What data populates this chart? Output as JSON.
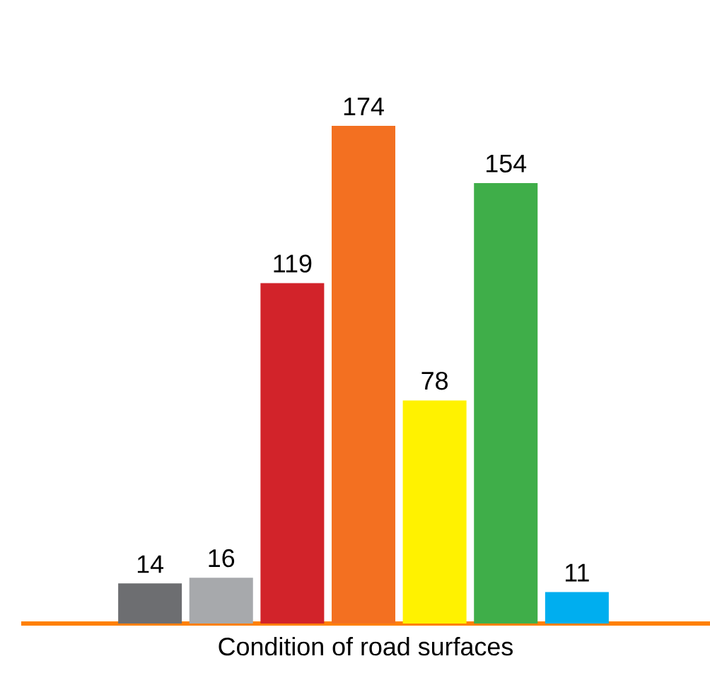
{
  "chart_data": {
    "type": "bar",
    "xlabel": "Condition of road surfaces",
    "categories": [
      null,
      null,
      null,
      null,
      null,
      null,
      null
    ],
    "values": [
      14,
      16,
      119,
      174,
      78,
      154,
      11
    ],
    "colors": [
      "#6d6e71",
      "#a7a9ac",
      "#d2232a",
      "#f37021",
      "#fff200",
      "#3fae49",
      "#00aeef"
    ],
    "data_labels": true
  }
}
